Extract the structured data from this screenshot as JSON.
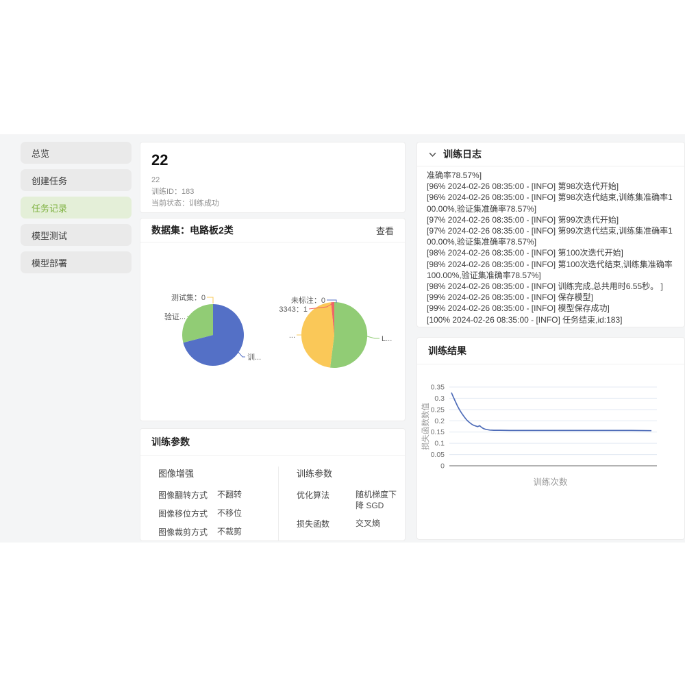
{
  "sidebar": {
    "items": [
      {
        "label": "总览",
        "active": false
      },
      {
        "label": "创建任务",
        "active": false
      },
      {
        "label": "任务记录",
        "active": true
      },
      {
        "label": "模型测试",
        "active": false
      },
      {
        "label": "模型部署",
        "active": false
      }
    ]
  },
  "task": {
    "title": "22",
    "name": "22",
    "train_id_label": "训练ID：",
    "train_id": "183",
    "status_label": "当前状态：",
    "status": "训练成功"
  },
  "dataset": {
    "title": "数据集：电路板2类",
    "view_label": "查看"
  },
  "params": {
    "title": "训练参数",
    "groups": [
      {
        "title": "图像增强",
        "rows": [
          {
            "label": "图像翻转方式",
            "value": "不翻转"
          },
          {
            "label": "图像移位方式",
            "value": "不移位"
          },
          {
            "label": "图像裁剪方式",
            "value": "不裁剪"
          }
        ]
      },
      {
        "title": "训练参数",
        "rows": [
          {
            "label": "优化算法",
            "value": "随机梯度下降 SGD"
          },
          {
            "label": "损失函数",
            "value": "交叉熵"
          }
        ]
      }
    ]
  },
  "log": {
    "title": "训练日志",
    "lines": [
      "准确率78.57%]",
      "[96% 2024-02-26 08:35:00 - [INFO] 第98次迭代开始]",
      "[96% 2024-02-26 08:35:00 - [INFO] 第98次迭代结束,训练集准确率100.00%,验证集准确率78.57%]",
      "[97% 2024-02-26 08:35:00 - [INFO] 第99次迭代开始]",
      "[97% 2024-02-26 08:35:00 - [INFO] 第99次迭代结束,训练集准确率100.00%,验证集准确率78.57%]",
      "[98% 2024-02-26 08:35:00 - [INFO] 第100次迭代开始]",
      "[98% 2024-02-26 08:35:00 - [INFO] 第100次迭代结束,训练集准确率100.00%,验证集准确率78.57%]",
      "[98% 2024-02-26 08:35:00 - [INFO] 训练完成,总共用时6.55秒。 ]",
      "[99% 2024-02-26 08:35:00 - [INFO] 保存模型]",
      "[99% 2024-02-26 08:35:00 - [INFO] 模型保存成功]",
      "[100% 2024-02-26 08:35:00 - [INFO] 任务结束,id:183]"
    ]
  },
  "result": {
    "title": "训练结果"
  },
  "colors": {
    "accent_green": "#7fb241",
    "active_item_bg": "#e4efd8",
    "pie_blue": "#5470c6",
    "pie_green": "#91cc75",
    "pie_yellow": "#fac858",
    "pie_red": "#ee6666",
    "loss_line": "#4e6cb8",
    "grid_line": "#e3e9f3",
    "axis_line": "#9a9a9a"
  },
  "chart_data": [
    {
      "type": "pie",
      "title": "数据集划分",
      "slices": [
        {
          "label": "训...",
          "percent": 71,
          "color": "#5470c6"
        },
        {
          "label": "验证...",
          "percent": 29,
          "color": "#91cc75"
        },
        {
          "label": "测试集：0",
          "percent": 0,
          "color": "#fac858"
        }
      ],
      "legend_position": "outside-callout"
    },
    {
      "type": "pie",
      "title": "标注分布",
      "slices": [
        {
          "label": "L...",
          "percent": 52,
          "color": "#91cc75"
        },
        {
          "label": "...",
          "percent": 46.4,
          "color": "#fac858"
        },
        {
          "label": "3343：1",
          "percent": 1.6,
          "color": "#ee6666"
        },
        {
          "label": "未标注：0",
          "percent": 0,
          "color": "#5470c6"
        }
      ],
      "legend_position": "outside-callout"
    },
    {
      "type": "line",
      "title": "训练结果",
      "xlabel": "训练次数",
      "ylabel": "损失函数数值",
      "ylim": [
        0,
        0.35
      ],
      "yticks": [
        0,
        0.05,
        0.1,
        0.15,
        0.2,
        0.25,
        0.3,
        0.35
      ],
      "xlim": [
        0,
        100
      ],
      "grid": true,
      "series": [
        {
          "name": "损失函数数值",
          "points": [
            [
              1,
              0.325
            ],
            [
              2,
              0.305
            ],
            [
              3,
              0.285
            ],
            [
              4,
              0.266
            ],
            [
              5,
              0.249
            ],
            [
              6,
              0.235
            ],
            [
              7,
              0.222
            ],
            [
              8,
              0.21
            ],
            [
              9,
              0.2
            ],
            [
              10,
              0.192
            ],
            [
              11,
              0.185
            ],
            [
              12,
              0.18
            ],
            [
              13,
              0.177
            ],
            [
              14,
              0.174
            ],
            [
              15,
              0.178
            ],
            [
              16,
              0.17
            ],
            [
              17,
              0.165
            ],
            [
              18,
              0.162
            ],
            [
              20,
              0.159
            ],
            [
              22,
              0.158
            ],
            [
              25,
              0.158
            ],
            [
              30,
              0.157
            ],
            [
              40,
              0.157
            ],
            [
              50,
              0.157
            ],
            [
              60,
              0.157
            ],
            [
              70,
              0.157
            ],
            [
              80,
              0.157
            ],
            [
              90,
              0.157
            ],
            [
              100,
              0.156
            ]
          ]
        }
      ]
    }
  ]
}
